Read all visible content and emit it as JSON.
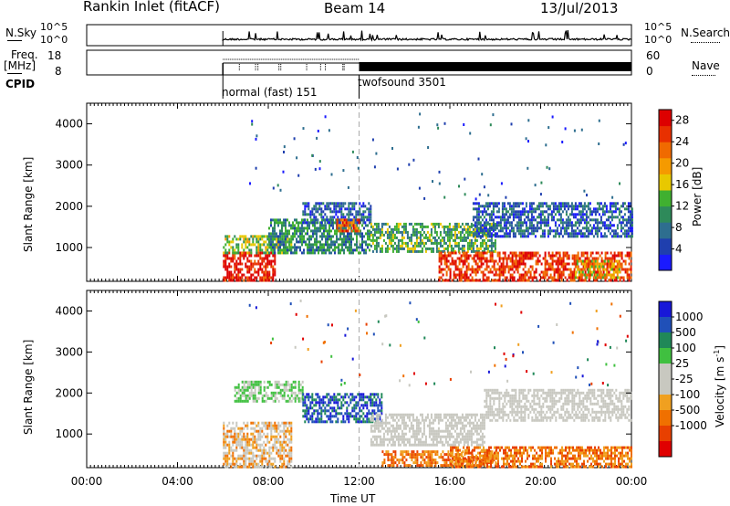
{
  "header": {
    "station": "Rankin Inlet (fitACF)",
    "beam": "Beam 14",
    "date": "13/Jul/2013"
  },
  "noise_panel": {
    "left_label": "N.Sky",
    "left_ticks": [
      "10^5",
      "10^0"
    ],
    "right_label": "N.Search",
    "right_ticks": [
      "10^5",
      "10^0"
    ],
    "right_linestyle": "dotted"
  },
  "freq_panel": {
    "left_label_1": "Freq.",
    "left_label_2": "[MHz]",
    "left_ticks": [
      "18",
      "8"
    ],
    "right_label": "Nave",
    "right_ticks": [
      "60",
      "0"
    ],
    "right_linestyle": "dotted"
  },
  "cpid": {
    "label": "CPID",
    "modes": [
      {
        "name": "normal (fast) 151",
        "start_hour": 6.0
      },
      {
        "name": "twofsound 3501",
        "start_hour": 12.0
      }
    ]
  },
  "colors": {
    "power_scale": [
      "#1a1aff",
      "#1f3fae",
      "#2e6e8f",
      "#2e8a5a",
      "#40b030",
      "#e8c800",
      "#f59a00",
      "#f06a00",
      "#e83000",
      "#dd0000"
    ],
    "velocity_scale": [
      "#1818d8",
      "#2050b8",
      "#208858",
      "#40c040",
      "#c8c8c0",
      "#c8c8c0",
      "#f0a020",
      "#f07000",
      "#e84000",
      "#e00000"
    ],
    "bg_frame": "#000000"
  },
  "chart_data": [
    {
      "type": "heatmap",
      "title": "",
      "xlabel": "",
      "ylabel": "Slant Range [km]",
      "xlim_hours": [
        0,
        24
      ],
      "ylim_km": [
        180,
        4500
      ],
      "y_ticks": [
        "1000",
        "2000",
        "3000",
        "4000"
      ],
      "colorbar": {
        "label": "Power [dB]",
        "ticks": [
          "4",
          "8",
          "12",
          "16",
          "20",
          "24",
          "28"
        ],
        "range": [
          0,
          30
        ]
      },
      "regions": [
        {
          "t0": 6.0,
          "t1": 8.3,
          "r0": 200,
          "r1": 900,
          "value": 28
        },
        {
          "t0": 6.0,
          "t1": 9.0,
          "r0": 900,
          "r1": 1300,
          "value": 14
        },
        {
          "t0": 8.0,
          "t1": 12.5,
          "r0": 900,
          "r1": 1700,
          "value": 10
        },
        {
          "t0": 9.5,
          "t1": 12.5,
          "r0": 1600,
          "r1": 2100,
          "value": 6
        },
        {
          "t0": 11.0,
          "t1": 12.0,
          "r0": 1400,
          "r1": 1700,
          "value": 24
        },
        {
          "t0": 12.5,
          "t1": 18.0,
          "r0": 900,
          "r1": 1600,
          "value": 12
        },
        {
          "t0": 15.5,
          "t1": 24.0,
          "r0": 200,
          "r1": 900,
          "value": 26
        },
        {
          "t0": 17.0,
          "t1": 24.0,
          "r0": 1300,
          "r1": 2100,
          "value": 6
        },
        {
          "t0": 21.5,
          "t1": 23.5,
          "r0": 300,
          "r1": 700,
          "value": 18
        }
      ]
    },
    {
      "type": "heatmap",
      "title": "",
      "xlabel": "Time UT",
      "ylabel": "Slant Range [km]",
      "xlim_hours": [
        0,
        24
      ],
      "ylim_km": [
        180,
        4500
      ],
      "x_ticks": [
        "00:00",
        "04:00",
        "08:00",
        "12:00",
        "16:00",
        "20:00",
        "00:00"
      ],
      "y_ticks": [
        "1000",
        "2000",
        "3000",
        "4000"
      ],
      "colorbar": {
        "label": "Velocity [m s^-1]",
        "ticks": [
          "1000",
          "500",
          "100",
          "25",
          "-25",
          "-100",
          "-500",
          "-1000"
        ]
      },
      "regions": [
        {
          "t0": 6.0,
          "t1": 9.0,
          "r0": 200,
          "r1": 1300,
          "value": "slow-negative"
        },
        {
          "t0": 6.5,
          "t1": 9.5,
          "r0": 1800,
          "r1": 2300,
          "value": "positive-low"
        },
        {
          "t0": 9.5,
          "t1": 13.0,
          "r0": 1300,
          "r1": 2000,
          "value": "positive-high"
        },
        {
          "t0": 12.5,
          "t1": 17.5,
          "r0": 700,
          "r1": 1500,
          "value": "near-zero"
        },
        {
          "t0": 13.0,
          "t1": 18.0,
          "r0": 200,
          "r1": 600,
          "value": "negative-medium"
        },
        {
          "t0": 16.0,
          "t1": 24.0,
          "r0": 200,
          "r1": 700,
          "value": "negative-medium"
        },
        {
          "t0": 17.5,
          "t1": 24.0,
          "r0": 1300,
          "r1": 2100,
          "value": "near-zero"
        }
      ]
    }
  ]
}
